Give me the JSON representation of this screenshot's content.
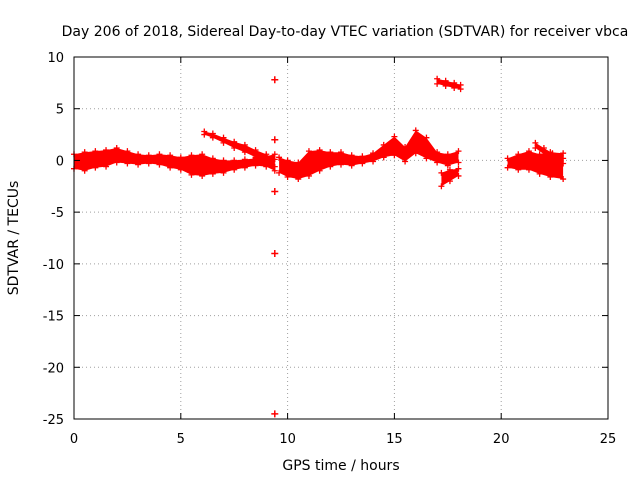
{
  "chart_data": {
    "type": "scatter",
    "title": "Day 206 of 2018, Sidereal Day-to-day VTEC variation (SDTVAR) for receiver vbca",
    "xlabel": "GPS time / hours",
    "ylabel": "SDTVAR / TECUs",
    "xlim": [
      0,
      25
    ],
    "ylim": [
      -25,
      10
    ],
    "xticks": [
      0,
      5,
      10,
      15,
      20,
      25
    ],
    "yticks": [
      10,
      5,
      0,
      -5,
      -10,
      -15,
      -20,
      -25
    ],
    "grid": true,
    "marker": "+",
    "color": "#ff0000",
    "series": [
      {
        "name": "SDTVAR",
        "bands": [
          {
            "x": [
              0.0,
              0.5,
              1.0,
              1.5,
              2.0,
              2.5,
              3.0,
              3.5,
              4.0,
              4.5,
              5.0,
              5.5,
              6.0,
              6.5,
              7.0,
              7.5,
              8.0,
              8.5,
              9.0,
              9.4
            ],
            "top": [
              0.6,
              0.8,
              0.9,
              1.0,
              1.2,
              0.9,
              0.6,
              0.5,
              0.6,
              0.5,
              0.3,
              0.5,
              0.6,
              0.2,
              0.0,
              0.0,
              0.1,
              0.2,
              0.4,
              0.6
            ],
            "bottom": [
              -0.8,
              -1.0,
              -0.7,
              -0.6,
              -0.2,
              -0.3,
              -0.4,
              -0.3,
              -0.4,
              -0.7,
              -0.9,
              -1.4,
              -1.5,
              -1.3,
              -1.2,
              -0.9,
              -0.7,
              -0.5,
              -0.6,
              -1.0
            ]
          },
          {
            "x": [
              6.1,
              6.5,
              7.0,
              7.5,
              8.0,
              8.5,
              9.0,
              9.4
            ],
            "top": [
              2.8,
              2.6,
              2.2,
              1.8,
              1.5,
              1.0,
              0.6,
              0.1
            ],
            "bottom": [
              2.5,
              2.2,
              1.7,
              1.2,
              0.8,
              0.3,
              -0.2,
              -0.6
            ]
          },
          {
            "x": [
              9.6,
              10.0,
              10.5,
              11.0,
              11.5,
              12.0,
              12.5,
              13.0,
              13.5,
              14.0,
              14.5,
              15.0,
              15.5,
              16.0,
              16.5,
              17.0,
              17.5,
              18.0
            ],
            "top": [
              0.3,
              0.0,
              -0.2,
              0.9,
              1.0,
              0.8,
              0.8,
              0.5,
              0.4,
              0.7,
              1.5,
              2.3,
              1.3,
              2.9,
              2.2,
              0.8,
              0.6,
              0.9
            ],
            "bottom": [
              -1.2,
              -1.6,
              -1.8,
              -1.5,
              -1.0,
              -0.6,
              -0.4,
              -0.5,
              -0.3,
              -0.1,
              0.3,
              0.5,
              -0.1,
              0.7,
              0.2,
              -0.2,
              -0.5,
              -0.2
            ]
          },
          {
            "x": [
              17.0,
              17.4,
              17.8,
              18.1
            ],
            "top": [
              7.9,
              7.7,
              7.5,
              7.3
            ],
            "bottom": [
              7.4,
              7.2,
              7.0,
              6.9
            ]
          },
          {
            "x": [
              17.2,
              17.6,
              18.0
            ],
            "top": [
              -1.2,
              -0.9,
              -0.8
            ],
            "bottom": [
              -2.5,
              -2.0,
              -1.5
            ]
          },
          {
            "x": [
              20.3,
              20.8,
              21.3,
              21.8,
              22.3,
              22.9
            ],
            "top": [
              0.2,
              0.6,
              0.9,
              0.6,
              0.8,
              0.7
            ],
            "bottom": [
              -0.7,
              -0.9,
              -0.9,
              -1.3,
              -1.6,
              -1.8
            ]
          },
          {
            "x": [
              21.6,
              22.0,
              22.4,
              22.9
            ],
            "top": [
              1.7,
              1.2,
              0.7,
              0.2
            ],
            "bottom": [
              1.2,
              0.6,
              0.1,
              -0.3
            ]
          }
        ],
        "points": [
          {
            "x": 9.4,
            "y": 7.8
          },
          {
            "x": 9.4,
            "y": 2.0
          },
          {
            "x": 9.4,
            "y": -3.0
          },
          {
            "x": 9.4,
            "y": -9.0
          },
          {
            "x": 9.4,
            "y": -24.5
          }
        ]
      }
    ]
  }
}
